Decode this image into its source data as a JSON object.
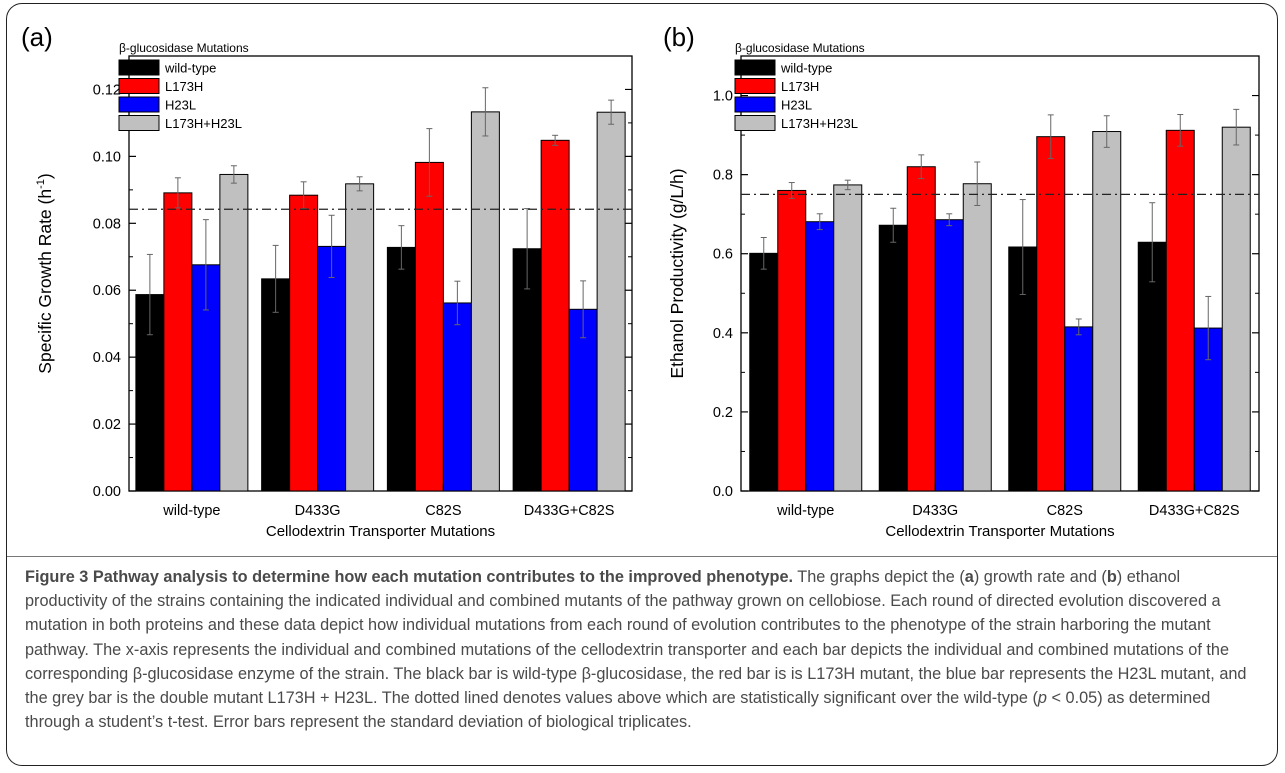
{
  "chart_data": [
    {
      "type": "bar",
      "panel_label": "(a)",
      "categories": [
        "wild-type",
        "D433G",
        "C82S",
        "D433G+C82S"
      ],
      "xlabel": "Cellodextrin Transporter Mutations",
      "ylabel_main": "Specific Growth Rate (h",
      "ylabel_sup": "-1",
      "ylabel_end": ")",
      "ylim": [
        0,
        0.13
      ],
      "yticks": [
        0,
        0.02,
        0.04,
        0.06,
        0.08,
        0.1,
        0.12
      ],
      "ytick_labels": [
        "0.00",
        "0.02",
        "0.04",
        "0.06",
        "0.08",
        "0.10",
        "0.12"
      ],
      "threshold": 0.0842,
      "legend_title": "β-glucosidase Mutations",
      "legend_position": "top-left",
      "series": [
        {
          "name": "wild-type",
          "color": "#000000",
          "values": [
            0.0587,
            0.0634,
            0.0728,
            0.0724
          ],
          "errors": [
            0.012,
            0.01,
            0.0065,
            0.012
          ]
        },
        {
          "name": "L173H",
          "color": "#ff0000",
          "values": [
            0.0891,
            0.0884,
            0.0982,
            0.1048
          ],
          "errors": [
            0.0045,
            0.004,
            0.0101,
            0.0015
          ]
        },
        {
          "name": "H23L",
          "color": "#0000ff",
          "values": [
            0.0676,
            0.0731,
            0.0562,
            0.0543
          ],
          "errors": [
            0.0135,
            0.0093,
            0.0065,
            0.0085
          ]
        },
        {
          "name": "L173H+H23L",
          "color": "#c0c0c0",
          "values": [
            0.0946,
            0.0918,
            0.1133,
            0.1132
          ],
          "errors": [
            0.0026,
            0.0021,
            0.0072,
            0.0036
          ]
        }
      ]
    },
    {
      "type": "bar",
      "panel_label": "(b)",
      "categories": [
        "wild-type",
        "D433G",
        "C82S",
        "D433G+C82S"
      ],
      "xlabel": "Cellodextrin Transporter Mutations",
      "ylabel_main": "Ethanol Productivity (g/L/h)",
      "ylabel_sup": "",
      "ylabel_end": "",
      "ylim": [
        0,
        1.1
      ],
      "yticks": [
        0,
        0.2,
        0.4,
        0.6,
        0.8,
        1.0
      ],
      "ytick_labels": [
        "0.0",
        "0.2",
        "0.4",
        "0.6",
        "0.8",
        "1.0"
      ],
      "threshold": 0.75,
      "legend_title": "β-glucosidase Mutations",
      "legend_position": "top-left",
      "series": [
        {
          "name": "wild-type",
          "color": "#000000",
          "values": [
            0.601,
            0.672,
            0.617,
            0.629
          ],
          "errors": [
            0.04,
            0.043,
            0.12,
            0.1
          ]
        },
        {
          "name": "L173H",
          "color": "#ff0000",
          "values": [
            0.76,
            0.82,
            0.896,
            0.912
          ],
          "errors": [
            0.02,
            0.03,
            0.055,
            0.04
          ]
        },
        {
          "name": "H23L",
          "color": "#0000ff",
          "values": [
            0.681,
            0.686,
            0.415,
            0.412
          ],
          "errors": [
            0.02,
            0.015,
            0.02,
            0.08
          ]
        },
        {
          "name": "L173H+H23L",
          "color": "#c0c0c0",
          "values": [
            0.774,
            0.777,
            0.909,
            0.92
          ],
          "errors": [
            0.012,
            0.055,
            0.04,
            0.045
          ]
        }
      ]
    }
  ],
  "caption": {
    "title": "Figure 3 Pathway analysis to determine how each mutation contributes to the improved phenotype.",
    "body_1": " The graphs depict the (",
    "a": "a",
    "body_2": ") growth rate and (",
    "b": "b",
    "body_3": ") ethanol productivity of the strains containing the indicated individual and combined mutants of the pathway grown on cellobiose. Each round of directed evolution discovered a mutation in both proteins and these data depict how individual mutations from each round of evolution contributes to the phenotype of the strain harboring the mutant pathway. The x-axis represents the individual and combined mutations of the cellodextrin transporter and each bar depicts the individual and combined mutations of the corresponding β-glucosidase enzyme of the strain. The black bar is wild-type β-glucosidase, the red bar is is L173H mutant, the blue bar represents the H23L mutant, and the grey bar is the double mutant L173H + H23L. The dotted lined denotes values above which are statistically significant over the wild-type (",
    "p": "p",
    "body_4": " < 0.05) as determined through a student’s t-test. Error bars represent the standard deviation of biological triplicates."
  }
}
